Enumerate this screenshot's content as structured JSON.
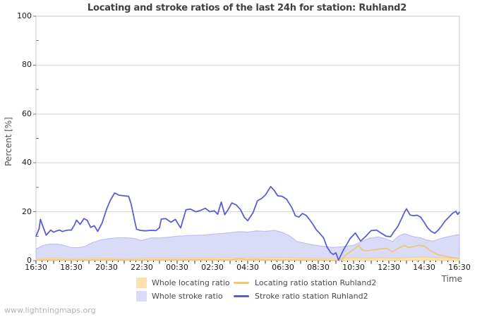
{
  "chart_data": {
    "type": "mixed-area-line",
    "title": "Locating and stroke ratios of the last 24h for station: Ruhland2",
    "ylabel": "Percent  [%]",
    "xlabel": "Time",
    "ylim": [
      0,
      100
    ],
    "y_major_ticks": [
      0,
      20,
      40,
      60,
      80,
      100
    ],
    "y_minor_ticks": [
      10,
      30,
      50,
      70,
      90
    ],
    "x_hours_range": [
      0,
      24
    ],
    "x_tick_labels": [
      "16:30",
      "18:30",
      "20:30",
      "22:30",
      "00:30",
      "02:30",
      "04:30",
      "06:30",
      "08:30",
      "10:30",
      "12:30",
      "14:30",
      "16:30"
    ],
    "x_label_interval_hours": 2,
    "grid": "horizontal",
    "legend_position": "bottom",
    "series": [
      {
        "name": "Whole locating ratio",
        "type": "area",
        "fill": "#fce3ae",
        "edge": "#edd096",
        "points": [
          [
            0,
            0.8
          ],
          [
            1,
            1.0
          ],
          [
            2,
            0.8
          ],
          [
            3,
            0.9
          ],
          [
            4,
            1.0
          ],
          [
            5,
            0.8
          ],
          [
            6,
            0.9
          ],
          [
            7,
            1.0
          ],
          [
            8,
            0.9
          ],
          [
            9,
            1.1
          ],
          [
            10,
            1.0
          ],
          [
            11,
            1.2
          ],
          [
            12,
            1.3
          ],
          [
            12.5,
            1.1
          ],
          [
            13,
            1.2
          ],
          [
            14,
            1.3
          ],
          [
            15,
            1.0
          ],
          [
            16,
            0.9
          ],
          [
            17,
            0.8
          ],
          [
            17.5,
            1.0
          ],
          [
            18,
            1.2
          ],
          [
            18.5,
            1.1
          ],
          [
            19,
            1.0
          ],
          [
            19.5,
            1.2
          ],
          [
            20,
            1.1
          ],
          [
            20.5,
            1.0
          ],
          [
            21,
            1.2
          ],
          [
            21.5,
            1.4
          ],
          [
            22,
            1.5
          ],
          [
            22.5,
            1.3
          ],
          [
            23,
            1.2
          ],
          [
            23.5,
            1.0
          ],
          [
            24,
            0.9
          ]
        ]
      },
      {
        "name": "Whole stroke ratio",
        "type": "area",
        "fill": "#dadbf7",
        "edge": "#b8b9ec",
        "points": [
          [
            0,
            4.8
          ],
          [
            0.4,
            6.2
          ],
          [
            0.8,
            6.8
          ],
          [
            1.2,
            6.8
          ],
          [
            1.6,
            6.2
          ],
          [
            2.0,
            5.4
          ],
          [
            2.4,
            5.3
          ],
          [
            2.8,
            5.9
          ],
          [
            3.2,
            7.4
          ],
          [
            3.6,
            8.3
          ],
          [
            4.0,
            8.9
          ],
          [
            4.5,
            9.3
          ],
          [
            5.0,
            9.4
          ],
          [
            5.5,
            9.2
          ],
          [
            6.0,
            8.2
          ],
          [
            6.5,
            9.3
          ],
          [
            7.0,
            9.3
          ],
          [
            7.5,
            9.6
          ],
          [
            8.0,
            10.0
          ],
          [
            8.5,
            10.2
          ],
          [
            9.0,
            10.4
          ],
          [
            9.5,
            10.4
          ],
          [
            10.0,
            10.9
          ],
          [
            10.5,
            11.1
          ],
          [
            11.0,
            11.4
          ],
          [
            11.5,
            11.9
          ],
          [
            12.0,
            11.7
          ],
          [
            12.5,
            12.2
          ],
          [
            13.0,
            12.0
          ],
          [
            13.5,
            12.4
          ],
          [
            14.0,
            11.5
          ],
          [
            14.4,
            10.0
          ],
          [
            14.8,
            7.8
          ],
          [
            15.2,
            7.2
          ],
          [
            15.6,
            6.6
          ],
          [
            16.0,
            6.1
          ],
          [
            16.4,
            5.8
          ],
          [
            16.8,
            5.4
          ],
          [
            17.2,
            5.6
          ],
          [
            17.6,
            5.9
          ],
          [
            18.0,
            6.3
          ],
          [
            18.4,
            7.6
          ],
          [
            18.9,
            9.2
          ],
          [
            19.4,
            9.7
          ],
          [
            19.8,
            9.0
          ],
          [
            20.2,
            7.8
          ],
          [
            20.6,
            10.3
          ],
          [
            20.9,
            11.0
          ],
          [
            21.4,
            9.8
          ],
          [
            21.8,
            9.4
          ],
          [
            22.1,
            8.5
          ],
          [
            22.5,
            8.0
          ],
          [
            22.9,
            9.0
          ],
          [
            23.3,
            9.7
          ],
          [
            23.7,
            10.3
          ],
          [
            24.0,
            10.7
          ]
        ]
      },
      {
        "name": "Locating ratio station Ruhland2",
        "type": "line",
        "color": "#eac687",
        "points": [
          [
            0,
            0.2
          ],
          [
            1,
            0.3
          ],
          [
            2,
            0.2
          ],
          [
            3,
            0.3
          ],
          [
            4,
            0.4
          ],
          [
            5,
            0.3
          ],
          [
            6,
            0.2
          ],
          [
            7,
            0.3
          ],
          [
            8,
            0.3
          ],
          [
            9,
            0.4
          ],
          [
            10,
            0.3
          ],
          [
            11,
            0.4
          ],
          [
            11.5,
            0.8
          ],
          [
            12,
            0.5
          ],
          [
            13,
            0.4
          ],
          [
            14,
            0.3
          ],
          [
            15,
            0.2
          ],
          [
            16,
            0.2
          ],
          [
            16.6,
            0.1
          ],
          [
            17.0,
            0.1
          ],
          [
            17.3,
            0.3
          ],
          [
            17.6,
            2.5
          ],
          [
            18.0,
            4.5
          ],
          [
            18.3,
            6.3
          ],
          [
            18.5,
            4.2
          ],
          [
            18.8,
            4.0
          ],
          [
            19.1,
            4.4
          ],
          [
            19.5,
            4.8
          ],
          [
            19.9,
            5.0
          ],
          [
            20.2,
            3.6
          ],
          [
            20.6,
            5.3
          ],
          [
            20.9,
            6.2
          ],
          [
            21.1,
            5.4
          ],
          [
            21.4,
            5.7
          ],
          [
            21.7,
            6.3
          ],
          [
            22.0,
            6.0
          ],
          [
            22.4,
            3.9
          ],
          [
            22.8,
            2.4
          ],
          [
            23.2,
            1.8
          ],
          [
            23.6,
            1.2
          ],
          [
            24.0,
            0.9
          ]
        ]
      },
      {
        "name": "Stroke ratio station Ruhland2",
        "type": "line",
        "color": "#5d5dd2",
        "points": [
          [
            0,
            10.0
          ],
          [
            0.17,
            13.0
          ],
          [
            0.25,
            16.9
          ],
          [
            0.42,
            13.5
          ],
          [
            0.58,
            10.4
          ],
          [
            0.83,
            12.5
          ],
          [
            1.0,
            11.6
          ],
          [
            1.17,
            12.2
          ],
          [
            1.33,
            12.5
          ],
          [
            1.5,
            11.9
          ],
          [
            1.67,
            12.3
          ],
          [
            1.83,
            12.5
          ],
          [
            2.0,
            12.5
          ],
          [
            2.17,
            14.5
          ],
          [
            2.3,
            16.6
          ],
          [
            2.5,
            14.8
          ],
          [
            2.72,
            17.2
          ],
          [
            2.9,
            16.5
          ],
          [
            3.1,
            13.6
          ],
          [
            3.3,
            14.3
          ],
          [
            3.5,
            12.0
          ],
          [
            3.75,
            15.5
          ],
          [
            4.0,
            21.0
          ],
          [
            4.2,
            24.5
          ],
          [
            4.45,
            27.7
          ],
          [
            4.7,
            26.8
          ],
          [
            5.0,
            26.5
          ],
          [
            5.25,
            26.3
          ],
          [
            5.4,
            23.0
          ],
          [
            5.6,
            16.0
          ],
          [
            5.7,
            12.9
          ],
          [
            5.9,
            12.4
          ],
          [
            6.2,
            12.2
          ],
          [
            6.5,
            12.4
          ],
          [
            6.8,
            12.3
          ],
          [
            7.0,
            13.5
          ],
          [
            7.1,
            17.0
          ],
          [
            7.35,
            17.2
          ],
          [
            7.65,
            15.7
          ],
          [
            7.9,
            16.9
          ],
          [
            8.1,
            14.5
          ],
          [
            8.2,
            13.4
          ],
          [
            8.5,
            20.8
          ],
          [
            8.75,
            21.1
          ],
          [
            9.05,
            20.0
          ],
          [
            9.3,
            20.5
          ],
          [
            9.6,
            21.4
          ],
          [
            9.85,
            20.0
          ],
          [
            10.1,
            20.4
          ],
          [
            10.3,
            19.0
          ],
          [
            10.5,
            24.0
          ],
          [
            10.7,
            18.8
          ],
          [
            10.9,
            21.0
          ],
          [
            11.1,
            23.6
          ],
          [
            11.35,
            22.8
          ],
          [
            11.6,
            20.8
          ],
          [
            11.8,
            17.8
          ],
          [
            12.0,
            16.3
          ],
          [
            12.3,
            19.6
          ],
          [
            12.55,
            24.5
          ],
          [
            12.8,
            25.5
          ],
          [
            13.0,
            26.8
          ],
          [
            13.3,
            30.3
          ],
          [
            13.5,
            28.8
          ],
          [
            13.7,
            26.5
          ],
          [
            13.95,
            26.3
          ],
          [
            14.2,
            25.2
          ],
          [
            14.5,
            21.7
          ],
          [
            14.7,
            18.4
          ],
          [
            14.9,
            17.8
          ],
          [
            15.1,
            19.3
          ],
          [
            15.3,
            18.6
          ],
          [
            15.5,
            16.9
          ],
          [
            15.7,
            14.8
          ],
          [
            15.9,
            12.5
          ],
          [
            16.1,
            11.0
          ],
          [
            16.3,
            9.3
          ],
          [
            16.5,
            5.5
          ],
          [
            16.7,
            3.3
          ],
          [
            16.85,
            2.5
          ],
          [
            17.0,
            3.2
          ],
          [
            17.15,
            0.2
          ],
          [
            17.4,
            4.0
          ],
          [
            17.6,
            6.5
          ],
          [
            17.8,
            9.0
          ],
          [
            18.1,
            11.3
          ],
          [
            18.4,
            8.0
          ],
          [
            18.7,
            10.0
          ],
          [
            19.0,
            12.3
          ],
          [
            19.3,
            12.5
          ],
          [
            19.55,
            11.3
          ],
          [
            19.85,
            10.0
          ],
          [
            20.1,
            9.8
          ],
          [
            20.3,
            12.0
          ],
          [
            20.5,
            13.9
          ],
          [
            20.7,
            16.9
          ],
          [
            20.9,
            20.0
          ],
          [
            21.0,
            21.2
          ],
          [
            21.2,
            18.7
          ],
          [
            21.4,
            18.4
          ],
          [
            21.6,
            18.6
          ],
          [
            21.8,
            17.8
          ],
          [
            22.0,
            15.7
          ],
          [
            22.2,
            13.4
          ],
          [
            22.4,
            12.0
          ],
          [
            22.6,
            11.2
          ],
          [
            22.8,
            12.5
          ],
          [
            23.0,
            14.3
          ],
          [
            23.2,
            16.3
          ],
          [
            23.4,
            17.8
          ],
          [
            23.6,
            19.3
          ],
          [
            23.8,
            20.2
          ],
          [
            23.9,
            18.9
          ],
          [
            24.0,
            19.8
          ]
        ]
      }
    ]
  },
  "watermark": "www.lightningmaps.org",
  "colors": {
    "background": "#ffffff",
    "frame": "#c8c8c8",
    "grid": "#d6d6d6",
    "tick": "#333333",
    "tick_label": "#1a1a1a",
    "axis_title": "#555555",
    "title_text": "#404040",
    "watermark_text": "#b3b3b3"
  }
}
